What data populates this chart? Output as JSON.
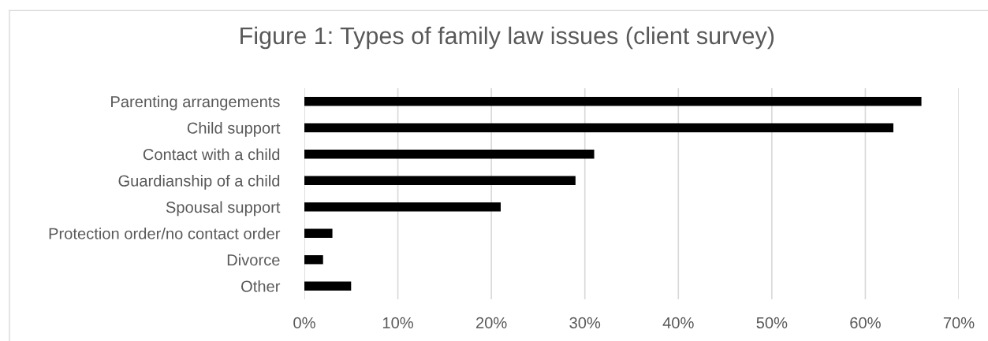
{
  "chart_data": {
    "type": "bar",
    "orientation": "horizontal",
    "title": "Figure 1: Types of family law issues (client survey)",
    "categories": [
      "Parenting arrangements",
      "Child support",
      "Contact with a child",
      "Guardianship of a child",
      "Spousal support",
      "Protection order/no contact order",
      "Divorce",
      "Other"
    ],
    "values": [
      66,
      63,
      31,
      29,
      21,
      3,
      2,
      5
    ],
    "color": "#000000",
    "xlim": [
      0,
      70
    ],
    "xticks": [
      {
        "value": 0,
        "label": "0%"
      },
      {
        "value": 10,
        "label": "10%"
      },
      {
        "value": 20,
        "label": "20%"
      },
      {
        "value": 30,
        "label": "30%"
      },
      {
        "value": 40,
        "label": "40%"
      },
      {
        "value": 50,
        "label": "50%"
      },
      {
        "value": 60,
        "label": "60%"
      },
      {
        "value": 70,
        "label": "70%"
      }
    ],
    "grid": "x"
  }
}
